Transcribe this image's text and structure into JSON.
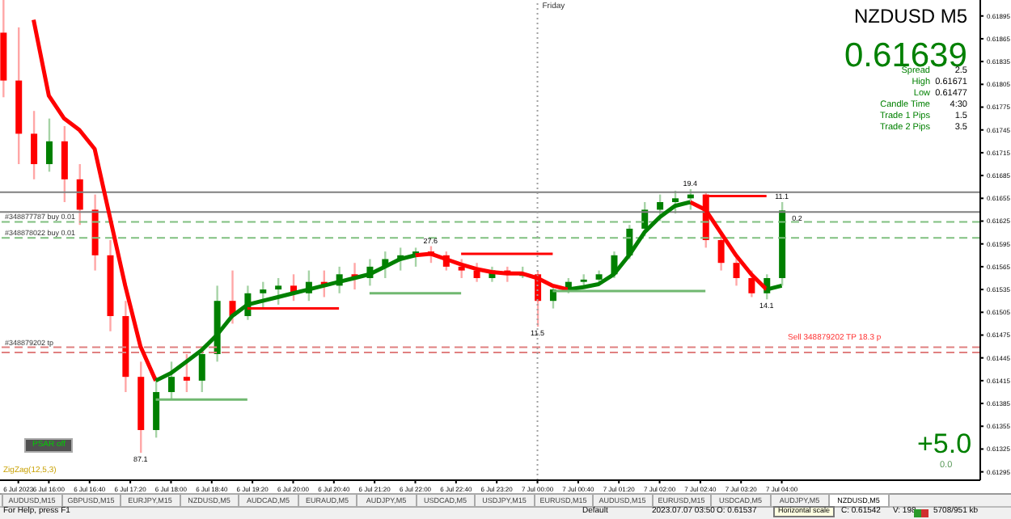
{
  "chart_data": {
    "type": "candlestick",
    "title": "NZDUSD M5",
    "x": [
      "2023-07-06T15:15",
      "2023-07-06T15:30",
      "2023-07-06T15:45",
      "2023-07-06T16:00",
      "2023-07-06T16:15",
      "2023-07-06T16:30",
      "2023-07-06T16:45",
      "2023-07-06T17:00",
      "2023-07-06T17:15",
      "2023-07-06T17:30",
      "2023-07-06T17:45",
      "2023-07-06T18:00",
      "2023-07-06T18:15",
      "2023-07-06T18:30",
      "2023-07-06T18:45",
      "2023-07-06T19:00",
      "2023-07-06T19:15",
      "2023-07-06T19:30",
      "2023-07-06T19:45",
      "2023-07-06T20:00",
      "2023-07-06T20:15",
      "2023-07-06T20:30",
      "2023-07-06T20:45",
      "2023-07-06T21:00",
      "2023-07-06T21:15",
      "2023-07-06T21:30",
      "2023-07-06T21:45",
      "2023-07-06T22:00",
      "2023-07-06T22:15",
      "2023-07-06T22:30",
      "2023-07-06T22:45",
      "2023-07-06T23:00",
      "2023-07-06T23:15",
      "2023-07-06T23:30",
      "2023-07-06T23:45",
      "2023-07-07T00:00",
      "2023-07-07T00:15",
      "2023-07-07T00:30",
      "2023-07-07T00:45",
      "2023-07-07T01:00",
      "2023-07-07T01:15",
      "2023-07-07T01:30",
      "2023-07-07T01:45",
      "2023-07-07T02:00",
      "2023-07-07T02:15",
      "2023-07-07T02:30",
      "2023-07-07T02:45",
      "2023-07-07T03:00",
      "2023-07-07T03:15",
      "2023-07-07T03:30",
      "2023-07-07T03:45",
      "2023-07-07T04:00"
    ],
    "ohlc": [
      [
        0.61873,
        0.61916,
        0.61788,
        0.6181
      ],
      [
        0.6181,
        0.6188,
        0.617,
        0.6174
      ],
      [
        0.6174,
        0.6177,
        0.6168,
        0.617
      ],
      [
        0.617,
        0.6176,
        0.6169,
        0.6173
      ],
      [
        0.6173,
        0.6175,
        0.6165,
        0.6168
      ],
      [
        0.6168,
        0.617,
        0.6162,
        0.6164
      ],
      [
        0.6164,
        0.6166,
        0.6156,
        0.6158
      ],
      [
        0.6158,
        0.616,
        0.6148,
        0.615
      ],
      [
        0.615,
        0.6152,
        0.614,
        0.6142
      ],
      [
        0.6142,
        0.6144,
        0.6132,
        0.6135
      ],
      [
        0.6135,
        0.6142,
        0.6134,
        0.614
      ],
      [
        0.614,
        0.6144,
        0.6139,
        0.6142
      ],
      [
        0.6142,
        0.6145,
        0.614,
        0.61415
      ],
      [
        0.61415,
        0.6146,
        0.614,
        0.6145
      ],
      [
        0.6145,
        0.6154,
        0.6144,
        0.6152
      ],
      [
        0.6152,
        0.6156,
        0.6149,
        0.615
      ],
      [
        0.615,
        0.6154,
        0.61495,
        0.6153
      ],
      [
        0.6153,
        0.61545,
        0.6151,
        0.61535
      ],
      [
        0.61535,
        0.6155,
        0.61515,
        0.6154
      ],
      [
        0.6154,
        0.61555,
        0.6152,
        0.6153
      ],
      [
        0.6153,
        0.6156,
        0.6152,
        0.61545
      ],
      [
        0.61545,
        0.6156,
        0.61525,
        0.6154
      ],
      [
        0.6154,
        0.61565,
        0.6153,
        0.61555
      ],
      [
        0.61555,
        0.6157,
        0.61535,
        0.6155
      ],
      [
        0.6155,
        0.61575,
        0.6154,
        0.61565
      ],
      [
        0.61565,
        0.61585,
        0.6155,
        0.61575
      ],
      [
        0.61575,
        0.6159,
        0.6156,
        0.6158
      ],
      [
        0.6158,
        0.6159,
        0.61565,
        0.61585
      ],
      [
        0.61585,
        0.61592,
        0.6157,
        0.6158
      ],
      [
        0.6158,
        0.61585,
        0.6156,
        0.61565
      ],
      [
        0.61565,
        0.61575,
        0.6155,
        0.6156
      ],
      [
        0.6156,
        0.6157,
        0.61545,
        0.6155
      ],
      [
        0.6155,
        0.61565,
        0.61545,
        0.6156
      ],
      [
        0.6156,
        0.61565,
        0.61545,
        0.61555
      ],
      [
        0.61555,
        0.61565,
        0.6155,
        0.61555
      ],
      [
        0.61555,
        0.6156,
        0.61486,
        0.6152
      ],
      [
        0.6152,
        0.6154,
        0.6151,
        0.61535
      ],
      [
        0.61535,
        0.6155,
        0.6153,
        0.61545
      ],
      [
        0.61545,
        0.61555,
        0.6154,
        0.61548
      ],
      [
        0.61548,
        0.6156,
        0.6154,
        0.61555
      ],
      [
        0.61555,
        0.61585,
        0.6155,
        0.6158
      ],
      [
        0.6158,
        0.6162,
        0.61575,
        0.61615
      ],
      [
        0.61615,
        0.6165,
        0.61605,
        0.6164
      ],
      [
        0.6164,
        0.6166,
        0.61625,
        0.6165
      ],
      [
        0.6165,
        0.61665,
        0.61635,
        0.61655
      ],
      [
        0.61655,
        0.61667,
        0.6164,
        0.6166
      ],
      [
        0.6166,
        0.61662,
        0.6159,
        0.616
      ],
      [
        0.616,
        0.6161,
        0.6156,
        0.6157
      ],
      [
        0.6157,
        0.6158,
        0.6154,
        0.6155
      ],
      [
        0.6155,
        0.6156,
        0.61525,
        0.6153
      ],
      [
        0.6153,
        0.61555,
        0.61522,
        0.6155
      ],
      [
        0.6155,
        0.6165,
        0.6154,
        0.61639
      ]
    ],
    "colors": [
      "#ff0000",
      "#ff0000",
      "#ff0000",
      "#008000",
      "#ff0000",
      "#ff0000",
      "#ff0000",
      "#ff0000",
      "#ff0000",
      "#ff0000",
      "#008000",
      "#008000",
      "#ff0000",
      "#008000",
      "#008000",
      "#ff0000",
      "#008000",
      "#008000",
      "#008000",
      "#ff0000",
      "#008000",
      "#ff0000",
      "#008000",
      "#ff0000",
      "#008000",
      "#008000",
      "#008000",
      "#008000",
      "#ff0000",
      "#ff0000",
      "#ff0000",
      "#ff0000",
      "#008000",
      "#ff0000",
      "#008000",
      "#ff0000",
      "#008000",
      "#008000",
      "#008000",
      "#008000",
      "#008000",
      "#008000",
      "#008000",
      "#008000",
      "#008000",
      "#008000",
      "#ff0000",
      "#ff0000",
      "#ff0000",
      "#ff0000",
      "#008000",
      "#008000"
    ],
    "series": [
      {
        "type": "line",
        "color": "#ff0000",
        "values": [
          null,
          null,
          0.6189,
          0.6179,
          0.6176,
          0.61745,
          0.6172,
          0.6163,
          0.6154,
          0.6146,
          0.61415,
          null,
          null,
          null,
          null,
          null,
          null,
          null,
          null,
          null,
          null,
          null,
          null,
          null,
          null,
          null,
          null,
          0.6158,
          0.61582,
          0.61575,
          0.61568,
          0.61562,
          0.61558,
          0.61556,
          0.61556,
          0.6155,
          0.6154,
          0.61535,
          null,
          null,
          null,
          null,
          null,
          null,
          null,
          0.6165,
          0.6164,
          0.6161,
          0.6158,
          0.61555,
          0.61535,
          null
        ]
      },
      {
        "type": "line",
        "color": "#008000",
        "values": [
          null,
          null,
          null,
          null,
          null,
          null,
          null,
          null,
          null,
          null,
          0.61415,
          0.61425,
          0.6144,
          0.61455,
          0.61475,
          0.615,
          0.61515,
          0.6152,
          0.61525,
          0.6153,
          0.61535,
          0.6154,
          0.61545,
          0.6155,
          0.61555,
          0.61565,
          0.61575,
          0.6158,
          null,
          null,
          null,
          null,
          null,
          null,
          null,
          null,
          null,
          0.61535,
          0.61538,
          0.61542,
          0.61555,
          0.6158,
          0.6161,
          0.6163,
          0.61645,
          0.6165,
          null,
          null,
          null,
          null,
          0.61535,
          0.6154
        ]
      },
      {
        "type": "line",
        "color": "#70b870",
        "x": [
          "2023-07-06T17:45",
          "2023-07-06T19:15"
        ],
        "values": [
          0.6139,
          0.6139
        ]
      },
      {
        "type": "line",
        "color": "#ff0000",
        "x": [
          "2023-07-06T19:15",
          "2023-07-06T20:45"
        ],
        "values": [
          0.6151,
          0.6151
        ]
      },
      {
        "type": "line",
        "color": "#70b870",
        "x": [
          "2023-07-06T21:15",
          "2023-07-06T22:45"
        ],
        "values": [
          0.6153,
          0.6153
        ]
      },
      {
        "type": "line",
        "color": "#ff0000",
        "x": [
          "2023-07-06T22:45",
          "2023-07-07T00:15"
        ],
        "values": [
          0.61582,
          0.61582
        ]
      },
      {
        "type": "line",
        "color": "#70b870",
        "x": [
          "2023-07-07T00:15",
          "2023-07-07T02:45"
        ],
        "values": [
          0.61533,
          0.61533
        ]
      },
      {
        "type": "line",
        "color": "#ff0000",
        "x": [
          "2023-07-07T02:45",
          "2023-07-07T03:45"
        ],
        "values": [
          0.61658,
          0.61658
        ]
      }
    ],
    "xlim": [
      "2023-07-06T15:12",
      "2023-07-07T07:15"
    ],
    "xticks": [
      {
        "value": "2023-07-06T15:30",
        "label": "6 Jul 2023"
      },
      {
        "value": "2023-07-06T16:00",
        "label": "6 Jul 16:00"
      },
      {
        "value": "2023-07-06T16:40",
        "label": "6 Jul 16:40"
      },
      {
        "value": "2023-07-06T17:20",
        "label": "6 Jul 17:20"
      },
      {
        "value": "2023-07-06T18:00",
        "label": "6 Jul 18:00"
      },
      {
        "value": "2023-07-06T18:40",
        "label": "6 Jul 18:40"
      },
      {
        "value": "2023-07-06T19:20",
        "label": "6 Jul 19:20"
      },
      {
        "value": "2023-07-06T20:00",
        "label": "6 Jul 20:00"
      },
      {
        "value": "2023-07-06T20:40",
        "label": "6 Jul 20:40"
      },
      {
        "value": "2023-07-06T21:20",
        "label": "6 Jul 21:20"
      },
      {
        "value": "2023-07-06T22:00",
        "label": "6 Jul 22:00"
      },
      {
        "value": "2023-07-06T22:40",
        "label": "6 Jul 22:40"
      },
      {
        "value": "2023-07-06T23:20",
        "label": "6 Jul 23:20"
      },
      {
        "value": "2023-07-07T00:00",
        "label": "7 Jul 00:00"
      },
      {
        "value": "2023-07-07T00:40",
        "label": "7 Jul 00:40"
      },
      {
        "value": "2023-07-07T01:20",
        "label": "7 Jul 01:20"
      },
      {
        "value": "2023-07-07T02:00",
        "label": "7 Jul 02:00"
      },
      {
        "value": "2023-07-07T02:40",
        "label": "7 Jul 02:40"
      },
      {
        "value": "2023-07-07T03:20",
        "label": "7 Jul 03:20"
      },
      {
        "value": "2023-07-07T04:00",
        "label": "7 Jul 04:00"
      }
    ],
    "ylim": [
      0.61284,
      0.61916
    ],
    "yticks": [
      0.61295,
      0.61325,
      0.61355,
      0.61385,
      0.61415,
      0.61445,
      0.61475,
      0.61505,
      0.61535,
      0.61565,
      0.61595,
      0.61625,
      0.61655,
      0.61685,
      0.61715,
      0.61745,
      0.61775,
      0.61805,
      0.61835,
      0.61865,
      0.61895
    ],
    "ref_lines": [
      {
        "axis": "y",
        "value": 0.61663,
        "color": "#808080"
      },
      {
        "axis": "y",
        "value": 0.61637,
        "color": "#808080"
      },
      {
        "axis": "y",
        "value": 0.61624,
        "label": "#348877787 buy 0.01",
        "color": "#80c080",
        "line_style": "dashed"
      },
      {
        "axis": "y",
        "value": 0.61603,
        "label": "#348878022 buy 0.01",
        "color": "#80c080",
        "line_style": "dashed"
      },
      {
        "axis": "y",
        "value": 0.61459,
        "label": "#348879202 tp",
        "color": "#e08080",
        "line_style": "dashed"
      },
      {
        "axis": "y",
        "value": 0.61452,
        "color": "#e08080",
        "line_style": "dashed"
      },
      {
        "axis": "x",
        "value": "2023-07-07T00:00",
        "label": "Friday",
        "color": "#a0a0a0",
        "line_style": "dotted"
      }
    ],
    "annotations": [
      "0.61639",
      "Spread",
      "2.5",
      "High",
      "0.61671",
      "Low",
      "0.61477",
      "Candle Time",
      "4:30",
      "Trade 1 Pips",
      "1.5",
      "Trade 2 Pips",
      "3.5",
      "+5.0",
      "0.0",
      "PSAR off",
      "ZigZag(12,5,3)",
      "For Help, press F1",
      "Default",
      "2023.07.07 03:50",
      "O: 0.61537",
      "C: 0.61542",
      "V: 198",
      "5708/951 kb",
      "Horizontal scale",
      "Sell 348879202 TP 18.3 p",
      "AUDUSD,M15",
      "GBPUSD,M15",
      "EURJPY,M15",
      "NZDUSD,M5",
      "AUDCAD,M5",
      "EURAUD,M5",
      "AUDJPY,M5",
      "USDCAD,M5",
      "USDJPY,M15",
      "EURUSD,M15",
      "AUDUSD,M15",
      "EURUSD,M15",
      "USDCAD,M5",
      "AUDJPY,M5",
      "NZDUSD,M5",
      {
        "text": "87.1",
        "x": "2023-07-06T17:30",
        "y": 0.6132
      },
      {
        "text": "27.6",
        "x": "2023-07-06T22:15",
        "y": 0.61592
      },
      {
        "text": "11.5",
        "x": "2023-07-07T00:00",
        "y": 0.61486
      },
      {
        "text": "19.4",
        "x": "2023-07-07T02:30",
        "y": 0.61667
      },
      {
        "text": "14.1",
        "x": "2023-07-07T03:45",
        "y": 0.61522
      },
      {
        "text": "11.1",
        "x": "2023-07-07T04:00",
        "y": 0.6165
      },
      {
        "text": "0.2",
        "x": "2023-07-07T04:15",
        "y": 0.61637
      }
    ],
    "legend": false,
    "grid": false
  }
}
